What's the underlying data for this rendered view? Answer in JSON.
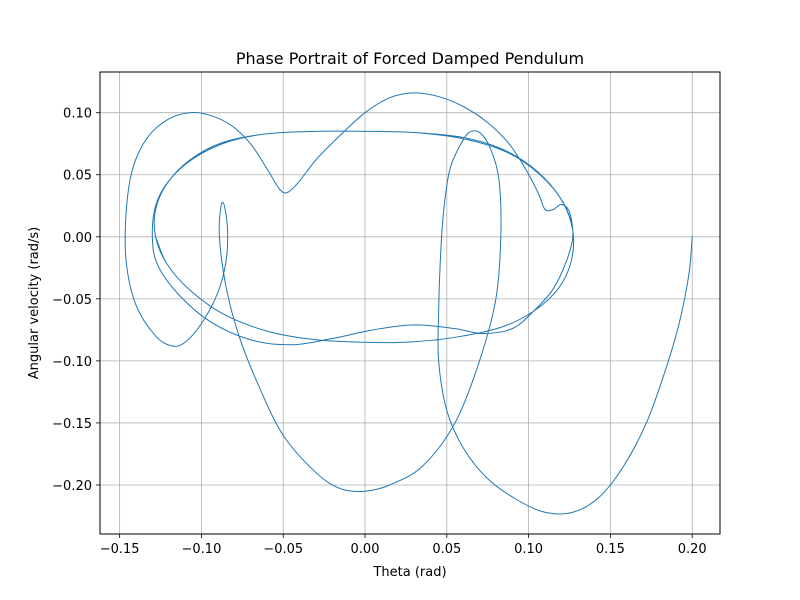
{
  "chart_data": {
    "type": "line",
    "title": "Phase Portrait of Forced Damped Pendulum",
    "xlabel": "Theta (rad)",
    "ylabel": "Angular velocity (rad/s)",
    "xlim": [
      -0.162,
      0.217
    ],
    "ylim": [
      -0.2395,
      0.1328
    ],
    "xticks": [
      -0.15,
      -0.1,
      -0.05,
      0.0,
      0.05,
      0.1,
      0.15,
      0.2
    ],
    "xtick_labels": [
      "−0.15",
      "−0.10",
      "−0.05",
      "0.00",
      "0.05",
      "0.10",
      "0.15",
      "0.20"
    ],
    "yticks": [
      -0.2,
      -0.15,
      -0.1,
      -0.05,
      0.0,
      0.05,
      0.1
    ],
    "ytick_labels": [
      "−0.20",
      "−0.15",
      "−0.10",
      "−0.05",
      "0.00",
      "0.05",
      "0.10"
    ],
    "grid": true,
    "series": [
      {
        "color": "#1f77b4",
        "points": [
          [
            0.2,
            0.0
          ],
          [
            0.198,
            -0.03
          ],
          [
            0.192,
            -0.07
          ],
          [
            0.183,
            -0.11
          ],
          [
            0.172,
            -0.15
          ],
          [
            0.158,
            -0.185
          ],
          [
            0.143,
            -0.21
          ],
          [
            0.127,
            -0.222
          ],
          [
            0.11,
            -0.222
          ],
          [
            0.093,
            -0.212
          ],
          [
            0.075,
            -0.195
          ],
          [
            0.06,
            -0.17
          ],
          [
            0.05,
            -0.14
          ],
          [
            0.045,
            -0.1
          ],
          [
            0.045,
            -0.06
          ],
          [
            0.046,
            -0.02
          ],
          [
            0.048,
            0.02
          ],
          [
            0.052,
            0.055
          ],
          [
            0.06,
            0.078
          ],
          [
            0.065,
            0.085
          ],
          [
            0.071,
            0.083
          ],
          [
            0.077,
            0.07
          ],
          [
            0.082,
            0.045
          ],
          [
            0.083,
            0.0
          ],
          [
            0.08,
            -0.05
          ],
          [
            0.07,
            -0.1
          ],
          [
            0.055,
            -0.15
          ],
          [
            0.035,
            -0.185
          ],
          [
            0.015,
            -0.2
          ],
          [
            0.0,
            -0.205
          ],
          [
            -0.015,
            -0.203
          ],
          [
            -0.03,
            -0.19
          ],
          [
            -0.05,
            -0.16
          ],
          [
            -0.065,
            -0.12
          ],
          [
            -0.077,
            -0.08
          ],
          [
            -0.085,
            -0.04
          ],
          [
            -0.089,
            0.0
          ],
          [
            -0.088,
            0.025
          ],
          [
            -0.086,
            0.025
          ],
          [
            -0.084,
            0.005
          ],
          [
            -0.085,
            -0.02
          ],
          [
            -0.09,
            -0.045
          ],
          [
            -0.1,
            -0.07
          ],
          [
            -0.11,
            -0.085
          ],
          [
            -0.118,
            -0.088
          ],
          [
            -0.128,
            -0.08
          ],
          [
            -0.14,
            -0.055
          ],
          [
            -0.146,
            -0.02
          ],
          [
            -0.146,
            0.02
          ],
          [
            -0.142,
            0.055
          ],
          [
            -0.133,
            0.08
          ],
          [
            -0.12,
            0.095
          ],
          [
            -0.107,
            0.1
          ],
          [
            -0.095,
            0.098
          ],
          [
            -0.082,
            0.09
          ],
          [
            -0.07,
            0.075
          ],
          [
            -0.06,
            0.055
          ],
          [
            -0.052,
            0.038
          ],
          [
            -0.047,
            0.036
          ],
          [
            -0.04,
            0.045
          ],
          [
            -0.03,
            0.062
          ],
          [
            -0.015,
            0.082
          ],
          [
            0.0,
            0.1
          ],
          [
            0.015,
            0.112
          ],
          [
            0.03,
            0.116
          ],
          [
            0.045,
            0.113
          ],
          [
            0.06,
            0.105
          ],
          [
            0.075,
            0.092
          ],
          [
            0.088,
            0.075
          ],
          [
            0.098,
            0.055
          ],
          [
            0.106,
            0.035
          ],
          [
            0.11,
            0.022
          ],
          [
            0.115,
            0.022
          ],
          [
            0.12,
            0.026
          ],
          [
            0.125,
            0.02
          ],
          [
            0.127,
            0.0
          ],
          [
            0.123,
            -0.02
          ],
          [
            0.115,
            -0.042
          ],
          [
            0.103,
            -0.06
          ],
          [
            0.09,
            -0.074
          ],
          [
            0.072,
            -0.078
          ],
          [
            0.055,
            -0.074
          ],
          [
            0.03,
            -0.071
          ],
          [
            0.005,
            -0.075
          ],
          [
            -0.02,
            -0.082
          ],
          [
            -0.045,
            -0.087
          ],
          [
            -0.07,
            -0.083
          ],
          [
            -0.095,
            -0.068
          ],
          [
            -0.115,
            -0.045
          ],
          [
            -0.127,
            -0.022
          ],
          [
            -0.13,
            0.0
          ],
          [
            -0.128,
            0.025
          ],
          [
            -0.12,
            0.045
          ],
          [
            -0.105,
            0.063
          ],
          [
            -0.085,
            0.076
          ],
          [
            -0.06,
            0.083
          ],
          [
            -0.03,
            0.085
          ],
          [
            0.0,
            0.085
          ],
          [
            0.03,
            0.084
          ],
          [
            0.06,
            0.08
          ],
          [
            0.085,
            0.07
          ],
          [
            0.105,
            0.053
          ],
          [
            0.12,
            0.03
          ],
          [
            0.127,
            0.005
          ],
          [
            0.126,
            -0.02
          ],
          [
            0.118,
            -0.042
          ],
          [
            0.103,
            -0.06
          ],
          [
            0.083,
            -0.073
          ],
          [
            0.055,
            -0.081
          ],
          [
            0.025,
            -0.085
          ],
          [
            0.0,
            -0.085
          ],
          [
            -0.03,
            -0.083
          ],
          [
            -0.06,
            -0.076
          ],
          [
            -0.087,
            -0.062
          ],
          [
            -0.107,
            -0.043
          ],
          [
            -0.121,
            -0.022
          ],
          [
            -0.128,
            0.0
          ],
          [
            -0.128,
            0.022
          ],
          [
            -0.121,
            0.043
          ],
          [
            -0.107,
            0.062
          ],
          [
            -0.087,
            0.076
          ],
          [
            -0.06,
            0.083
          ],
          [
            -0.03,
            0.085
          ],
          [
            0.0,
            0.085
          ],
          [
            0.03,
            0.084
          ],
          [
            0.06,
            0.079
          ],
          [
            0.087,
            0.068
          ],
          [
            0.107,
            0.05
          ],
          [
            0.121,
            0.028
          ],
          [
            0.127,
            0.005
          ],
          [
            0.126,
            -0.02
          ],
          [
            0.118,
            -0.042
          ],
          [
            0.103,
            -0.06
          ],
          [
            0.083,
            -0.073
          ],
          [
            0.055,
            -0.081
          ],
          [
            0.025,
            -0.085
          ],
          [
            0.0,
            -0.085
          ],
          [
            -0.03,
            -0.083
          ],
          [
            -0.06,
            -0.076
          ],
          [
            -0.087,
            -0.062
          ],
          [
            -0.107,
            -0.043
          ],
          [
            -0.121,
            -0.022
          ],
          [
            -0.128,
            0.0
          ],
          [
            -0.128,
            0.022
          ],
          [
            -0.121,
            0.043
          ],
          [
            -0.107,
            0.062
          ],
          [
            -0.087,
            0.076
          ],
          [
            -0.06,
            0.083
          ],
          [
            -0.03,
            0.085
          ],
          [
            0.0,
            0.085
          ],
          [
            0.03,
            0.084
          ],
          [
            0.06,
            0.079
          ],
          [
            0.087,
            0.068
          ],
          [
            0.107,
            0.05
          ],
          [
            0.121,
            0.028
          ],
          [
            0.127,
            0.005
          ],
          [
            0.126,
            -0.02
          ],
          [
            0.118,
            -0.042
          ],
          [
            0.103,
            -0.06
          ],
          [
            0.083,
            -0.073
          ],
          [
            0.055,
            -0.081
          ],
          [
            0.025,
            -0.085
          ],
          [
            0.0,
            -0.085
          ],
          [
            -0.03,
            -0.083
          ],
          [
            -0.06,
            -0.076
          ],
          [
            -0.087,
            -0.062
          ],
          [
            -0.107,
            -0.043
          ],
          [
            -0.121,
            -0.022
          ],
          [
            -0.128,
            0.0
          ],
          [
            -0.128,
            0.022
          ],
          [
            -0.121,
            0.043
          ],
          [
            -0.107,
            0.062
          ],
          [
            -0.087,
            0.076
          ],
          [
            -0.06,
            0.083
          ],
          [
            -0.03,
            0.085
          ],
          [
            0.0,
            0.085
          ],
          [
            0.03,
            0.084
          ],
          [
            0.06,
            0.079
          ],
          [
            0.087,
            0.068
          ],
          [
            0.107,
            0.05
          ],
          [
            0.121,
            0.028
          ],
          [
            0.127,
            0.005
          ],
          [
            0.126,
            -0.02
          ],
          [
            0.118,
            -0.042
          ],
          [
            0.103,
            -0.06
          ],
          [
            0.083,
            -0.073
          ],
          [
            0.055,
            -0.081
          ],
          [
            0.025,
            -0.085
          ],
          [
            0.0,
            -0.085
          ],
          [
            -0.03,
            -0.083
          ],
          [
            -0.06,
            -0.076
          ],
          [
            -0.087,
            -0.062
          ],
          [
            -0.107,
            -0.043
          ],
          [
            -0.121,
            -0.022
          ],
          [
            -0.128,
            0.0
          ],
          [
            -0.128,
            0.022
          ],
          [
            -0.121,
            0.043
          ],
          [
            -0.107,
            0.062
          ],
          [
            -0.087,
            0.076
          ],
          [
            -0.06,
            0.083
          ],
          [
            -0.03,
            0.085
          ],
          [
            0.0,
            0.085
          ],
          [
            0.03,
            0.084
          ],
          [
            0.06,
            0.079
          ],
          [
            0.087,
            0.068
          ],
          [
            0.107,
            0.05
          ],
          [
            0.121,
            0.028
          ],
          [
            0.127,
            0.005
          ],
          [
            0.126,
            -0.02
          ],
          [
            0.118,
            -0.042
          ],
          [
            0.103,
            -0.06
          ],
          [
            0.083,
            -0.073
          ],
          [
            0.055,
            -0.081
          ],
          [
            0.025,
            -0.085
          ],
          [
            0.0,
            -0.085
          ],
          [
            -0.03,
            -0.083
          ],
          [
            -0.06,
            -0.076
          ],
          [
            -0.087,
            -0.062
          ],
          [
            -0.107,
            -0.043
          ],
          [
            -0.121,
            -0.022
          ],
          [
            -0.128,
            0.0
          ],
          [
            -0.128,
            0.022
          ],
          [
            -0.121,
            0.043
          ],
          [
            -0.107,
            0.062
          ],
          [
            -0.087,
            0.076
          ],
          [
            -0.06,
            0.083
          ],
          [
            -0.03,
            0.085
          ],
          [
            0.0,
            0.085
          ],
          [
            0.03,
            0.084
          ],
          [
            0.06,
            0.079
          ],
          [
            0.087,
            0.068
          ],
          [
            0.107,
            0.05
          ],
          [
            0.121,
            0.028
          ],
          [
            0.127,
            0.005
          ],
          [
            0.126,
            -0.02
          ],
          [
            0.118,
            -0.042
          ],
          [
            0.103,
            -0.06
          ],
          [
            0.083,
            -0.073
          ],
          [
            0.055,
            -0.081
          ],
          [
            0.025,
            -0.085
          ],
          [
            0.0,
            -0.085
          ],
          [
            -0.03,
            -0.083
          ],
          [
            -0.06,
            -0.076
          ],
          [
            -0.087,
            -0.062
          ],
          [
            -0.107,
            -0.043
          ],
          [
            -0.121,
            -0.022
          ],
          [
            -0.128,
            0.0
          ]
        ]
      }
    ]
  }
}
